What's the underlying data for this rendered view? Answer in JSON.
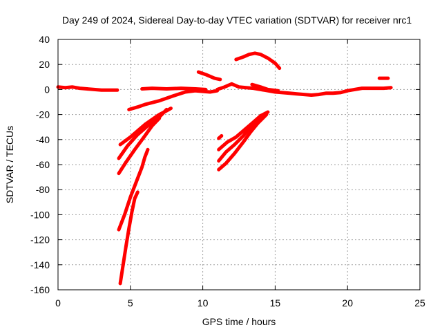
{
  "chart_data": {
    "type": "scatter",
    "title": "Day 249 of 2024, Sidereal Day-to-day VTEC variation (SDTVAR) for receiver nrc1",
    "xlabel": "GPS time / hours",
    "ylabel": "SDTVAR / TECUs",
    "xlim": [
      0,
      25
    ],
    "ylim": [
      -160,
      40
    ],
    "x_ticks": [
      "0",
      "5",
      "10",
      "15",
      "20",
      "25"
    ],
    "y_ticks": [
      "-160",
      "-140",
      "-120",
      "-100",
      "-80",
      "-60",
      "-40",
      "-20",
      "0",
      "20",
      "40"
    ],
    "x_tick_values": [
      0,
      5,
      10,
      15,
      20,
      25
    ],
    "y_tick_values": [
      -160,
      -140,
      -120,
      -100,
      -80,
      -60,
      -40,
      -20,
      0,
      20,
      40
    ],
    "grid": true,
    "color": "#ff0000",
    "series": [
      {
        "points": [
          [
            0.0,
            2
          ],
          [
            0.5,
            1.5
          ],
          [
            1.0,
            2
          ],
          [
            1.5,
            1
          ],
          [
            2.0,
            0.5
          ],
          [
            2.5,
            0
          ],
          [
            3.0,
            -0.5
          ],
          [
            3.5,
            -0.5
          ],
          [
            4.1,
            -0.5
          ]
        ]
      },
      {
        "points": [
          [
            5.8,
            0.5
          ],
          [
            6.5,
            1
          ],
          [
            7.5,
            0.5
          ],
          [
            8.5,
            1
          ],
          [
            9.5,
            0.5
          ],
          [
            10.2,
            0
          ]
        ]
      },
      {
        "points": [
          [
            9.5,
            -1
          ],
          [
            10.0,
            -1.5
          ],
          [
            10.5,
            -2
          ],
          [
            11.0,
            -1
          ]
        ]
      },
      {
        "points": [
          [
            4.9,
            -16
          ],
          [
            5.5,
            -14
          ],
          [
            6.0,
            -12
          ],
          [
            7.0,
            -9
          ],
          [
            8.0,
            -5
          ],
          [
            8.8,
            -2
          ],
          [
            9.5,
            -1
          ]
        ]
      },
      {
        "points": [
          [
            9.7,
            14
          ],
          [
            10.2,
            12
          ],
          [
            10.8,
            9
          ],
          [
            11.2,
            8
          ]
        ]
      },
      {
        "points": [
          [
            11.0,
            0
          ],
          [
            11.5,
            2
          ],
          [
            12.0,
            4.5
          ],
          [
            12.5,
            2
          ],
          [
            13.0,
            1.5
          ],
          [
            13.5,
            1
          ],
          [
            14.0,
            0
          ],
          [
            14.5,
            -1
          ],
          [
            15.0,
            -2
          ],
          [
            15.5,
            -2.5
          ],
          [
            16.0,
            -3
          ],
          [
            16.5,
            -3.5
          ],
          [
            17.0,
            -4
          ],
          [
            17.5,
            -4.5
          ],
          [
            18.0,
            -4
          ],
          [
            18.5,
            -3
          ],
          [
            19.0,
            -3
          ],
          [
            19.5,
            -2.5
          ],
          [
            20.0,
            -1
          ],
          [
            20.5,
            0
          ],
          [
            21.0,
            1
          ],
          [
            21.5,
            1
          ],
          [
            22.0,
            1
          ],
          [
            22.5,
            1
          ],
          [
            23.0,
            1.5
          ]
        ]
      },
      {
        "points": [
          [
            13.4,
            4
          ],
          [
            14.0,
            2
          ],
          [
            14.5,
            0
          ],
          [
            15.2,
            -1
          ]
        ]
      },
      {
        "points": [
          [
            12.3,
            24
          ],
          [
            12.8,
            26
          ],
          [
            13.2,
            28
          ],
          [
            13.6,
            29
          ],
          [
            14.0,
            28
          ],
          [
            14.5,
            25
          ],
          [
            15.0,
            21
          ],
          [
            15.3,
            17
          ]
        ]
      },
      {
        "points": [
          [
            22.2,
            9
          ],
          [
            22.8,
            9
          ]
        ]
      },
      {
        "points": [
          [
            4.3,
            -44
          ],
          [
            5.0,
            -38
          ],
          [
            5.5,
            -33
          ],
          [
            6.0,
            -28
          ],
          [
            6.5,
            -24
          ],
          [
            7.0,
            -20
          ],
          [
            7.5,
            -17
          ],
          [
            7.8,
            -15
          ]
        ]
      },
      {
        "points": [
          [
            4.2,
            -55
          ],
          [
            4.8,
            -45
          ],
          [
            5.5,
            -36
          ],
          [
            6.2,
            -29
          ],
          [
            7.0,
            -22
          ],
          [
            7.5,
            -16
          ]
        ]
      },
      {
        "points": [
          [
            4.2,
            -67
          ],
          [
            4.7,
            -58
          ],
          [
            5.3,
            -48
          ],
          [
            6.0,
            -37
          ],
          [
            6.5,
            -29
          ],
          [
            7.0,
            -23
          ]
        ]
      },
      {
        "points": [
          [
            4.2,
            -112
          ],
          [
            4.6,
            -100
          ],
          [
            5.0,
            -86
          ],
          [
            5.4,
            -74
          ],
          [
            5.8,
            -62
          ],
          [
            6.0,
            -54
          ],
          [
            6.2,
            -48
          ]
        ]
      },
      {
        "points": [
          [
            4.3,
            -155
          ],
          [
            4.5,
            -140
          ],
          [
            4.7,
            -125
          ],
          [
            4.9,
            -111
          ],
          [
            5.1,
            -98
          ],
          [
            5.3,
            -87
          ],
          [
            5.5,
            -82
          ]
        ]
      },
      {
        "points": [
          [
            11.1,
            -39
          ],
          [
            11.3,
            -37
          ]
        ]
      },
      {
        "points": [
          [
            11.1,
            -48
          ],
          [
            11.7,
            -42
          ],
          [
            12.3,
            -38
          ],
          [
            13.0,
            -31
          ],
          [
            13.5,
            -26
          ],
          [
            14.0,
            -21
          ],
          [
            14.5,
            -18
          ]
        ]
      },
      {
        "points": [
          [
            11.1,
            -57
          ],
          [
            11.6,
            -50
          ],
          [
            12.2,
            -44
          ],
          [
            12.8,
            -37
          ],
          [
            13.3,
            -30
          ],
          [
            13.8,
            -25
          ],
          [
            14.4,
            -19
          ]
        ]
      },
      {
        "points": [
          [
            11.1,
            -64
          ],
          [
            11.6,
            -59
          ],
          [
            12.2,
            -51
          ],
          [
            12.8,
            -42
          ],
          [
            13.3,
            -34
          ],
          [
            13.8,
            -27
          ],
          [
            14.4,
            -20
          ]
        ]
      }
    ]
  }
}
